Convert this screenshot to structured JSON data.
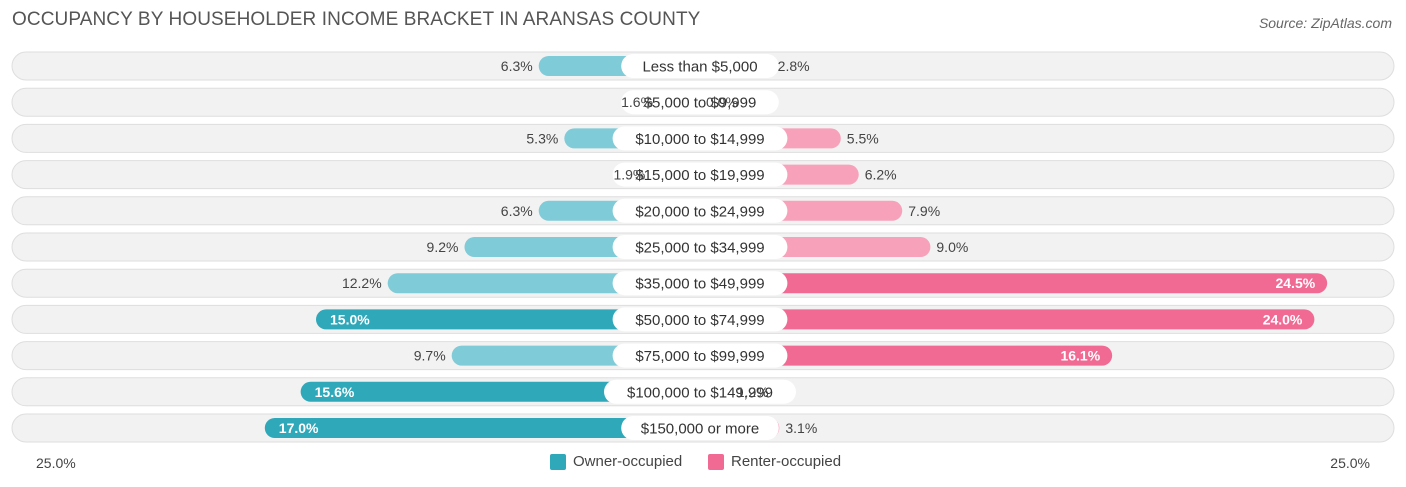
{
  "header": {
    "title": "OCCUPANCY BY HOUSEHOLDER INCOME BRACKET IN ARANSAS COUNTY",
    "source": "Source: ZipAtlas.com"
  },
  "colors": {
    "owner_light": "#7fcbd7",
    "owner_dark": "#2fa8ba",
    "renter_light": "#f7a1bb",
    "renter_dark": "#f06a94",
    "row_bg": "#f2f2f2",
    "row_border": "#dedede"
  },
  "legend": {
    "owner_label": "Owner-occupied",
    "renter_label": "Renter-occupied"
  },
  "axis": {
    "left_label": "25.0%",
    "right_label": "25.0%"
  },
  "chart_data": {
    "type": "bar",
    "orientation": "horizontal-diverging",
    "title": "OCCUPANCY BY HOUSEHOLDER INCOME BRACKET IN ARANSAS COUNTY",
    "xlim": [
      -25,
      25
    ],
    "categories": [
      "Less than $5,000",
      "$5,000 to $9,999",
      "$10,000 to $14,999",
      "$15,000 to $19,999",
      "$20,000 to $24,999",
      "$25,000 to $34,999",
      "$35,000 to $49,999",
      "$50,000 to $74,999",
      "$75,000 to $99,999",
      "$100,000 to $149,999",
      "$150,000 or more"
    ],
    "series": [
      {
        "name": "Owner-occupied",
        "values": [
          6.3,
          1.6,
          5.3,
          1.9,
          6.3,
          9.2,
          12.2,
          15.0,
          9.7,
          15.6,
          17.0
        ]
      },
      {
        "name": "Renter-occupied",
        "values": [
          2.8,
          0.0,
          5.5,
          6.2,
          7.9,
          9.0,
          24.5,
          24.0,
          16.1,
          1.2,
          3.1
        ]
      }
    ],
    "legend": "bottom-center"
  }
}
